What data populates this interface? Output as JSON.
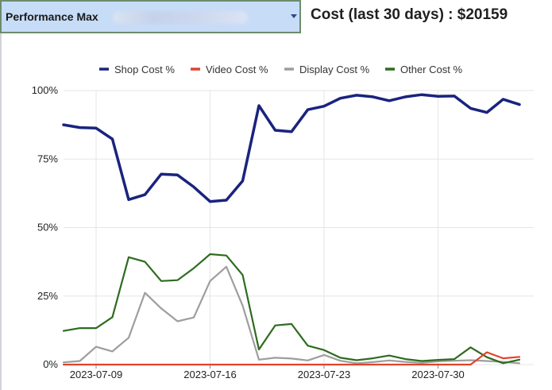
{
  "header": {
    "campaign_select": {
      "value": "Performance Max"
    },
    "cost_summary": "Cost (last 30 days) : $20159"
  },
  "colors": {
    "shop": "#1a237e",
    "video": "#e0442b",
    "display": "#9e9e9e",
    "other": "#2e6b1f",
    "grid": "#e6e6e6",
    "selector_bg": "#c7dcf7"
  },
  "chart_data": {
    "type": "line",
    "x": [
      "2023-07-07",
      "2023-07-08",
      "2023-07-09",
      "2023-07-10",
      "2023-07-11",
      "2023-07-12",
      "2023-07-13",
      "2023-07-14",
      "2023-07-15",
      "2023-07-16",
      "2023-07-17",
      "2023-07-18",
      "2023-07-19",
      "2023-07-20",
      "2023-07-21",
      "2023-07-22",
      "2023-07-23",
      "2023-07-24",
      "2023-07-25",
      "2023-07-26",
      "2023-07-27",
      "2023-07-28",
      "2023-07-29",
      "2023-07-30",
      "2023-07-31",
      "2023-08-01",
      "2023-08-02",
      "2023-08-03",
      "2023-08-04",
      "2023-08-05"
    ],
    "series": [
      {
        "name": "Shop Cost %",
        "color": "#1a237e",
        "values": [
          87.5,
          86.5,
          86.3,
          82.3,
          60.2,
          62.0,
          69.5,
          69.2,
          64.8,
          59.5,
          60.0,
          67.0,
          94.5,
          85.5,
          85.0,
          93.0,
          94.3,
          97.2,
          98.3,
          97.7,
          96.3,
          97.7,
          98.5,
          97.9,
          98.0,
          93.5,
          92.0,
          96.8,
          94.9,
          null
        ]
      },
      {
        "name": "Video Cost %",
        "color": "#e0442b",
        "values": [
          0,
          0,
          0,
          0,
          0,
          0,
          0,
          0,
          0,
          0,
          0,
          0,
          0,
          0,
          0,
          0,
          0,
          0,
          0,
          0,
          0,
          0,
          0,
          0,
          0,
          0,
          4.5,
          2.3,
          2.8,
          null
        ]
      },
      {
        "name": "Display Cost %",
        "color": "#9e9e9e",
        "values": [
          0.8,
          1.3,
          6.5,
          4.8,
          9.8,
          26.2,
          20.5,
          15.8,
          17.2,
          30.5,
          35.7,
          21.5,
          1.8,
          2.5,
          2.2,
          1.5,
          3.5,
          1.4,
          0.5,
          0.9,
          1.5,
          1.0,
          0.6,
          1.2,
          1.4,
          1.6,
          1.3,
          1.0,
          0.5,
          null
        ]
      },
      {
        "name": "Other Cost %",
        "color": "#2e6b1f",
        "values": [
          12.3,
          13.3,
          13.3,
          17.3,
          39.2,
          37.5,
          30.5,
          30.8,
          35.2,
          40.3,
          39.8,
          32.7,
          5.5,
          14.3,
          14.8,
          6.9,
          5.3,
          2.5,
          1.6,
          2.3,
          3.3,
          2.0,
          1.3,
          1.7,
          2.0,
          6.3,
          2.7,
          0.5,
          1.8,
          null
        ]
      }
    ],
    "xticks": [
      "2023-07-09",
      "2023-07-16",
      "2023-07-23",
      "2023-07-30"
    ],
    "yticks": [
      0,
      25,
      50,
      75,
      100
    ],
    "ytick_labels": [
      "0%",
      "25%",
      "50%",
      "75%",
      "100%"
    ],
    "ylim": [
      0,
      100
    ],
    "grid": true,
    "legend_position": "top"
  }
}
